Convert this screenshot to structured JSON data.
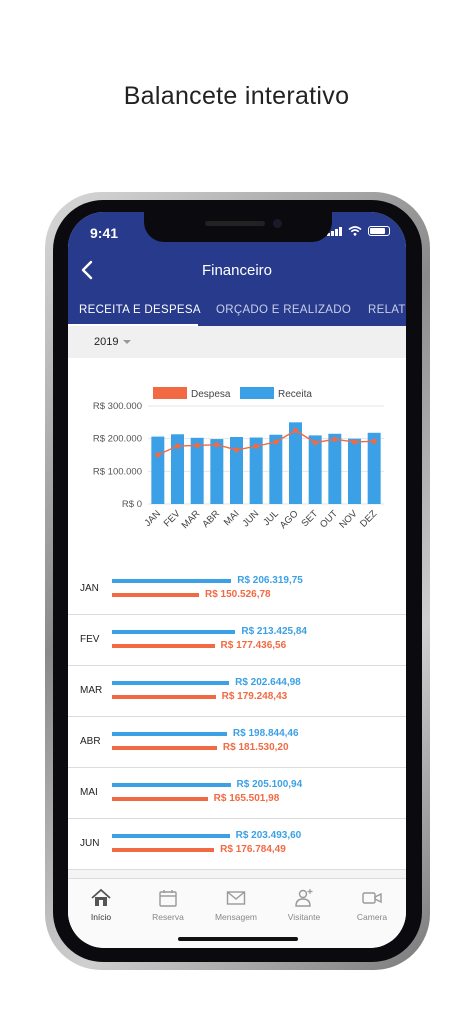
{
  "promo": {
    "title": "Balancete interativo"
  },
  "status": {
    "time": "9:41"
  },
  "header": {
    "title": "Financeiro",
    "tabs": [
      {
        "label": "RECEITA E DESPESA",
        "active": true
      },
      {
        "label": "ORÇADO E REALIZADO",
        "active": false
      },
      {
        "label": "RELATÓ",
        "active": false
      }
    ]
  },
  "year_selector": {
    "value": "2019"
  },
  "chart_data": {
    "type": "bar",
    "title": "",
    "xlabel": "",
    "ylabel": "",
    "categories": [
      "JAN",
      "FEV",
      "MAR",
      "ABR",
      "MAI",
      "JUN",
      "JUL",
      "AGO",
      "SET",
      "OUT",
      "NOV",
      "DEZ"
    ],
    "ylim": [
      0,
      300000
    ],
    "yticks": [
      "R$ 0",
      "R$ 100.000",
      "R$ 200.000",
      "R$ 300.000"
    ],
    "ytick_values": [
      0,
      100000,
      200000,
      300000
    ],
    "legend": {
      "position": "top",
      "entries": [
        "Despesa",
        "Receita"
      ]
    },
    "grid": true,
    "series": [
      {
        "name": "Receita",
        "kind": "bar",
        "color": "#3ba0e6",
        "values": [
          206319.75,
          213425.84,
          202644.98,
          198844.46,
          205100.94,
          203493.6,
          212000,
          250000,
          210000,
          215000,
          200000,
          218000
        ]
      },
      {
        "name": "Despesa",
        "kind": "line",
        "color": "#f26a44",
        "values": [
          150526.78,
          177436.56,
          179248.43,
          181530.2,
          165501.98,
          176784.49,
          190000,
          225000,
          188000,
          198000,
          190000,
          192000
        ]
      }
    ]
  },
  "months": [
    {
      "label": "JAN",
      "receita": "R$ 206.319,75",
      "despesa": "R$ 150.526,78",
      "r": 206319.75,
      "d": 150526.78
    },
    {
      "label": "FEV",
      "receita": "R$ 213.425,84",
      "despesa": "R$ 177.436,56",
      "r": 213425.84,
      "d": 177436.56
    },
    {
      "label": "MAR",
      "receita": "R$ 202.644,98",
      "despesa": "R$ 179.248,43",
      "r": 202644.98,
      "d": 179248.43
    },
    {
      "label": "ABR",
      "receita": "R$ 198.844,46",
      "despesa": "R$ 181.530,20",
      "r": 198844.46,
      "d": 181530.2
    },
    {
      "label": "MAI",
      "receita": "R$ 205.100,94",
      "despesa": "R$ 165.501,98",
      "r": 205100.94,
      "d": 165501.98
    },
    {
      "label": "JUN",
      "receita": "R$ 203.493,60",
      "despesa": "R$ 176.784,49",
      "r": 203493.6,
      "d": 176784.49
    }
  ],
  "bottom_nav": [
    {
      "label": "Início",
      "icon": "home-icon",
      "active": true
    },
    {
      "label": "Reserva",
      "icon": "calendar-icon",
      "active": false
    },
    {
      "label": "Mensagem",
      "icon": "mail-icon",
      "active": false
    },
    {
      "label": "Visitante",
      "icon": "visitor-icon",
      "active": false
    },
    {
      "label": "Camera",
      "icon": "camera-icon",
      "active": false
    }
  ]
}
